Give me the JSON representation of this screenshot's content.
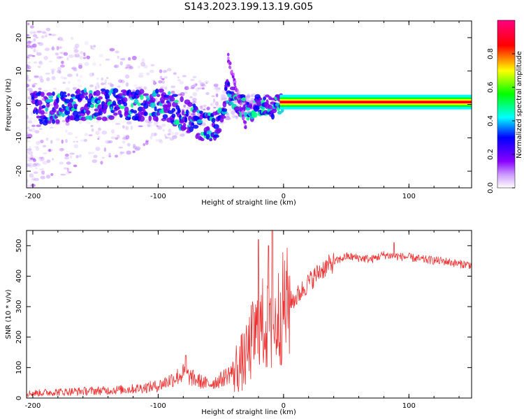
{
  "title": "S143.2023.199.13.19.G05",
  "chart_data": [
    {
      "type": "heatmap",
      "xlabel": "Height of straight line (km)",
      "ylabel": "Frequency (Hz)",
      "xlim": [
        -205,
        150
      ],
      "ylim": [
        -25,
        25
      ],
      "xticks": [
        -200,
        -100,
        0,
        100
      ],
      "yticks": [
        -20,
        -10,
        0,
        10,
        20
      ],
      "colorbar": {
        "label": "Normalized spectral amplitude",
        "range": [
          0,
          1
        ],
        "ticks": [
          "0.0",
          "0.2",
          "0.4",
          "0.6",
          "0.8"
        ],
        "colors": [
          "#ffffff",
          "#cc99ff",
          "#8800ff",
          "#0000ff",
          "#00ffff",
          "#00ff00",
          "#ffff00",
          "#ff0000",
          "#ff0080"
        ]
      },
      "ridge": {
        "x": [
          -200,
          -180,
          -160,
          -140,
          -120,
          -100,
          -90,
          -80,
          -70,
          -60,
          -50,
          -45,
          -40,
          -35,
          -30,
          -25,
          -20,
          -15,
          -10,
          -5,
          0,
          10,
          50,
          100,
          150
        ],
        "y": [
          -1,
          -1,
          0,
          0,
          0,
          0,
          -1,
          -3,
          -5,
          -7,
          -6,
          4,
          2,
          0,
          -1,
          -2,
          0,
          0,
          -1,
          0,
          1,
          0.5,
          0.5,
          0.5,
          0.5
        ]
      },
      "grid": false
    },
    {
      "type": "line",
      "xlabel": "Height of straight line (km)",
      "ylabel": "SNR (10 * v/v)",
      "xlim": [
        -205,
        150
      ],
      "ylim": [
        0,
        550
      ],
      "xticks": [
        -200,
        -100,
        0,
        100
      ],
      "yticks": [
        0,
        100,
        200,
        300,
        400,
        500
      ],
      "color": "#ee3333",
      "envelope": {
        "x": [
          -205,
          -180,
          -140,
          -120,
          -100,
          -90,
          -80,
          -70,
          -60,
          -50,
          -40,
          -30,
          -25,
          -20,
          -15,
          -10,
          -5,
          0,
          10,
          20,
          30,
          40,
          50,
          60,
          70,
          80,
          90,
          100,
          110,
          120,
          130,
          140,
          150
        ],
        "y": [
          15,
          20,
          25,
          30,
          40,
          60,
          80,
          60,
          45,
          60,
          90,
          130,
          190,
          220,
          250,
          200,
          260,
          300,
          330,
          380,
          420,
          445,
          465,
          460,
          455,
          470,
          465,
          462,
          455,
          452,
          448,
          440,
          437
        ]
      },
      "spikes": [
        {
          "x": -78,
          "y": 140
        },
        {
          "x": -20,
          "y": 520
        },
        {
          "x": -12,
          "y": 500
        },
        {
          "x": -9,
          "y": 550
        },
        {
          "x": 88,
          "y": 510
        }
      ],
      "grid": false
    }
  ]
}
